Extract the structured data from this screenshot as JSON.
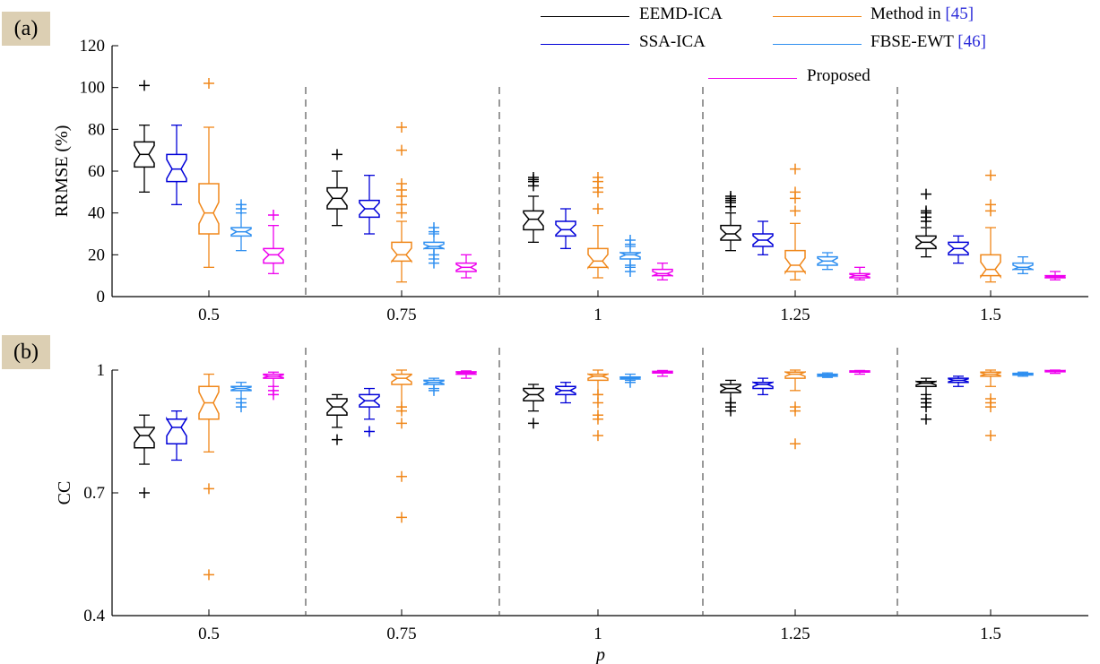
{
  "panels": [
    {
      "tag": "(a)"
    },
    {
      "tag": "(b)"
    }
  ],
  "legend": [
    {
      "name": "EEMD-ICA",
      "ref": "",
      "color": "#000000"
    },
    {
      "name": "SSA-ICA",
      "ref": "",
      "color": "#0000d8"
    },
    {
      "name": "Method in ",
      "ref": "[45]",
      "color": "#f0871a"
    },
    {
      "name": "FBSE-EWT ",
      "ref": "[46]",
      "color": "#2f8ff0"
    },
    {
      "name": "Proposed",
      "ref": "",
      "color": "#ee00ee"
    }
  ],
  "chart_data": [
    {
      "type": "box",
      "panel": "(a)",
      "ylabel": "RRMSE (%)",
      "xlabel": "",
      "ylim": [
        0,
        120
      ],
      "yticks": [
        0,
        20,
        40,
        60,
        80,
        100,
        120
      ],
      "categories": [
        "0.5",
        "0.75",
        "1",
        "1.25",
        "1.5"
      ],
      "series": [
        {
          "name": "EEMD-ICA",
          "color": "#000000",
          "boxes": [
            {
              "min": 50,
              "q1": 62,
              "median": 68,
              "q3": 74,
              "max": 82,
              "outliers": [
                101
              ]
            },
            {
              "min": 34,
              "q1": 42,
              "median": 47,
              "q3": 52,
              "max": 60,
              "outliers": [
                68
              ]
            },
            {
              "min": 26,
              "q1": 32,
              "median": 37,
              "q3": 41,
              "max": 48,
              "outliers": [
                53,
                55,
                56,
                57
              ]
            },
            {
              "min": 22,
              "q1": 27,
              "median": 30,
              "q3": 34,
              "max": 40,
              "outliers": [
                43,
                45,
                46,
                47,
                48
              ]
            },
            {
              "min": 19,
              "q1": 23,
              "median": 26,
              "q3": 29,
              "max": 33,
              "outliers": [
                36,
                38,
                40,
                41,
                49
              ]
            }
          ]
        },
        {
          "name": "SSA-ICA",
          "color": "#0000d8",
          "boxes": [
            {
              "min": 44,
              "q1": 55,
              "median": 61,
              "q3": 68,
              "max": 82,
              "outliers": []
            },
            {
              "min": 30,
              "q1": 38,
              "median": 42,
              "q3": 46,
              "max": 58,
              "outliers": []
            },
            {
              "min": 23,
              "q1": 29,
              "median": 32,
              "q3": 36,
              "max": 42,
              "outliers": []
            },
            {
              "min": 20,
              "q1": 24,
              "median": 27,
              "q3": 30,
              "max": 36,
              "outliers": []
            },
            {
              "min": 16,
              "q1": 20,
              "median": 23,
              "q3": 26,
              "max": 29,
              "outliers": []
            }
          ]
        },
        {
          "name": "Method in [45]",
          "color": "#f0871a",
          "boxes": [
            {
              "min": 14,
              "q1": 30,
              "median": 40,
              "q3": 54,
              "max": 81,
              "outliers": [
                102
              ]
            },
            {
              "min": 7,
              "q1": 17,
              "median": 20,
              "q3": 26,
              "max": 36,
              "outliers": [
                40,
                44,
                48,
                51,
                54,
                70,
                81
              ]
            },
            {
              "min": 9,
              "q1": 14,
              "median": 17,
              "q3": 23,
              "max": 34,
              "outliers": [
                42,
                50,
                52,
                55,
                57
              ]
            },
            {
              "min": 8,
              "q1": 12,
              "median": 15,
              "q3": 22,
              "max": 35,
              "outliers": [
                41,
                47,
                50,
                61
              ]
            },
            {
              "min": 7,
              "q1": 10,
              "median": 13,
              "q3": 20,
              "max": 33,
              "outliers": [
                41,
                44,
                58
              ]
            }
          ]
        },
        {
          "name": "FBSE-EWT [46]",
          "color": "#2f8ff0",
          "boxes": [
            {
              "min": 22,
              "q1": 29,
              "median": 31,
              "q3": 33,
              "max": 40,
              "outliers": [
                42,
                44
              ]
            },
            {
              "min": 18,
              "q1": 23,
              "median": 24,
              "q3": 26,
              "max": 30,
              "outliers": [
                16,
                20,
                31,
                33
              ]
            },
            {
              "min": 14,
              "q1": 18,
              "median": 20,
              "q3": 21,
              "max": 24,
              "outliers": [
                12,
                15,
                25,
                27
              ]
            },
            {
              "min": 13,
              "q1": 15,
              "median": 17,
              "q3": 19,
              "max": 21,
              "outliers": []
            },
            {
              "min": 11,
              "q1": 13,
              "median": 14,
              "q3": 16,
              "max": 19,
              "outliers": []
            }
          ]
        },
        {
          "name": "Proposed",
          "color": "#ee00ee",
          "boxes": [
            {
              "min": 11,
              "q1": 16,
              "median": 20,
              "q3": 23,
              "max": 34,
              "outliers": [
                39
              ]
            },
            {
              "min": 9,
              "q1": 12,
              "median": 14,
              "q3": 16,
              "max": 20,
              "outliers": []
            },
            {
              "min": 8,
              "q1": 10,
              "median": 11,
              "q3": 13,
              "max": 16,
              "outliers": []
            },
            {
              "min": 8,
              "q1": 9,
              "median": 10,
              "q3": 11,
              "max": 14,
              "outliers": []
            },
            {
              "min": 8,
              "q1": 9,
              "median": 9.5,
              "q3": 10,
              "max": 12,
              "outliers": []
            }
          ]
        }
      ]
    },
    {
      "type": "box",
      "panel": "(b)",
      "ylabel": "CC",
      "xlabel": "p",
      "ylim": [
        0.4,
        1.0
      ],
      "yticks": [
        0.4,
        0.7,
        1.0
      ],
      "ytick_labels": [
        "0.4",
        "0.7",
        "1"
      ],
      "categories": [
        "0.5",
        "0.75",
        "1",
        "1.25",
        "1.5"
      ],
      "series": [
        {
          "name": "EEMD-ICA",
          "color": "#000000",
          "boxes": [
            {
              "min": 0.77,
              "q1": 0.81,
              "median": 0.84,
              "q3": 0.86,
              "max": 0.89,
              "outliers": [
                0.7
              ]
            },
            {
              "min": 0.86,
              "q1": 0.89,
              "median": 0.91,
              "q3": 0.93,
              "max": 0.94,
              "outliers": [
                0.83
              ]
            },
            {
              "min": 0.9,
              "q1": 0.925,
              "median": 0.94,
              "q3": 0.955,
              "max": 0.965,
              "outliers": [
                0.87
              ]
            },
            {
              "min": 0.92,
              "q1": 0.945,
              "median": 0.955,
              "q3": 0.965,
              "max": 0.975,
              "outliers": [
                0.9,
                0.91,
                0.92
              ]
            },
            {
              "min": 0.94,
              "q1": 0.96,
              "median": 0.968,
              "q3": 0.972,
              "max": 0.98,
              "outliers": [
                0.88,
                0.91,
                0.92,
                0.93
              ]
            }
          ]
        },
        {
          "name": "SSA-ICA",
          "color": "#0000d8",
          "boxes": [
            {
              "min": 0.78,
              "q1": 0.82,
              "median": 0.86,
              "q3": 0.88,
              "max": 0.9,
              "outliers": []
            },
            {
              "min": 0.88,
              "q1": 0.91,
              "median": 0.925,
              "q3": 0.94,
              "max": 0.955,
              "outliers": [
                0.85
              ]
            },
            {
              "min": 0.92,
              "q1": 0.94,
              "median": 0.95,
              "q3": 0.96,
              "max": 0.97,
              "outliers": []
            },
            {
              "min": 0.94,
              "q1": 0.955,
              "median": 0.965,
              "q3": 0.97,
              "max": 0.98,
              "outliers": []
            },
            {
              "min": 0.96,
              "q1": 0.97,
              "median": 0.975,
              "q3": 0.98,
              "max": 0.985,
              "outliers": []
            }
          ]
        },
        {
          "name": "Method in [45]",
          "color": "#f0871a",
          "boxes": [
            {
              "min": 0.8,
              "q1": 0.88,
              "median": 0.92,
              "q3": 0.96,
              "max": 0.99,
              "outliers": [
                0.71,
                0.5
              ]
            },
            {
              "min": 0.91,
              "q1": 0.965,
              "median": 0.98,
              "q3": 0.99,
              "max": 1.0,
              "outliers": [
                0.9,
                0.91,
                0.87,
                0.74,
                0.64
              ]
            },
            {
              "min": 0.94,
              "q1": 0.975,
              "median": 0.985,
              "q3": 0.99,
              "max": 1.0,
              "outliers": [
                0.89,
                0.88,
                0.84,
                0.92,
                0.94
              ]
            },
            {
              "min": 0.95,
              "q1": 0.98,
              "median": 0.99,
              "q3": 0.995,
              "max": 1.0,
              "outliers": [
                0.9,
                0.91,
                0.82
              ]
            },
            {
              "min": 0.96,
              "q1": 0.985,
              "median": 0.99,
              "q3": 0.995,
              "max": 1.0,
              "outliers": [
                0.93,
                0.92,
                0.91,
                0.84
              ]
            }
          ]
        },
        {
          "name": "FBSE-EWT [46]",
          "color": "#2f8ff0",
          "boxes": [
            {
              "min": 0.93,
              "q1": 0.95,
              "median": 0.955,
              "q3": 0.96,
              "max": 0.97,
              "outliers": [
                0.91,
                0.92
              ]
            },
            {
              "min": 0.955,
              "q1": 0.965,
              "median": 0.97,
              "q3": 0.975,
              "max": 0.98,
              "outliers": [
                0.95
              ]
            },
            {
              "min": 0.975,
              "q1": 0.978,
              "median": 0.98,
              "q3": 0.983,
              "max": 0.99,
              "outliers": [
                0.97
              ]
            },
            {
              "min": 0.982,
              "q1": 0.985,
              "median": 0.987,
              "q3": 0.99,
              "max": 0.993,
              "outliers": []
            },
            {
              "min": 0.985,
              "q1": 0.988,
              "median": 0.99,
              "q3": 0.992,
              "max": 0.995,
              "outliers": []
            }
          ]
        },
        {
          "name": "Proposed",
          "color": "#ee00ee",
          "boxes": [
            {
              "min": 0.96,
              "q1": 0.98,
              "median": 0.985,
              "q3": 0.99,
              "max": 0.995,
              "outliers": [
                0.94,
                0.95
              ]
            },
            {
              "min": 0.98,
              "q1": 0.99,
              "median": 0.993,
              "q3": 0.996,
              "max": 0.998,
              "outliers": []
            },
            {
              "min": 0.985,
              "q1": 0.993,
              "median": 0.995,
              "q3": 0.997,
              "max": 0.999,
              "outliers": []
            },
            {
              "min": 0.99,
              "q1": 0.995,
              "median": 0.997,
              "q3": 0.998,
              "max": 0.999,
              "outliers": []
            },
            {
              "min": 0.992,
              "q1": 0.996,
              "median": 0.998,
              "q3": 0.999,
              "max": 1.0,
              "outliers": []
            }
          ]
        }
      ]
    }
  ]
}
